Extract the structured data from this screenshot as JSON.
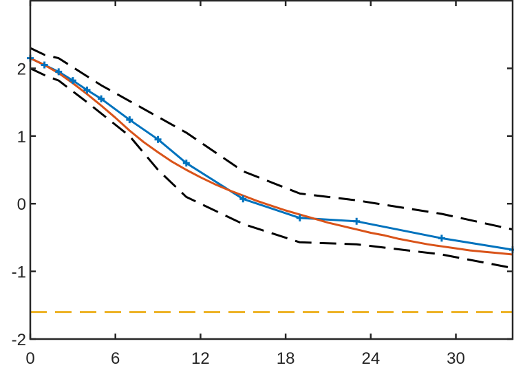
{
  "chart_data": {
    "type": "line",
    "title": "",
    "xlabel": "",
    "ylabel": "",
    "xlim": [
      0,
      34
    ],
    "ylim": [
      -2,
      3
    ],
    "x_ticks": [
      0,
      6,
      12,
      18,
      24,
      30
    ],
    "y_ticks": [
      -2,
      -1,
      0,
      1,
      2
    ],
    "x_tick_labels": [
      "0",
      "6",
      "12",
      "18",
      "24",
      "30"
    ],
    "y_tick_labels": [
      "-2",
      "-1",
      "0",
      "1",
      "2"
    ],
    "grid": false,
    "box": true,
    "series": [
      {
        "role": "observed",
        "color": "#0072BD",
        "marker": "+",
        "style": "solid",
        "x": [
          0,
          1,
          2,
          3,
          4,
          5,
          7,
          9,
          11,
          15,
          19,
          23,
          29,
          34
        ],
        "y": [
          2.15,
          2.05,
          1.95,
          1.82,
          1.68,
          1.55,
          1.24,
          0.95,
          0.6,
          0.07,
          -0.21,
          -0.26,
          -0.51,
          -0.68
        ]
      },
      {
        "role": "fitted",
        "color": "#D95319",
        "marker": "none",
        "style": "solid",
        "x": [
          0,
          1,
          2,
          3,
          4,
          5,
          6,
          7,
          8,
          9,
          10,
          11,
          12,
          13,
          14,
          15,
          16,
          17,
          18,
          19,
          20,
          21,
          22,
          23,
          24,
          25,
          26,
          27,
          28,
          29,
          30,
          31,
          32,
          33,
          34
        ],
        "y": [
          2.15,
          2.05,
          1.93,
          1.78,
          1.62,
          1.45,
          1.27,
          1.08,
          0.91,
          0.76,
          0.62,
          0.5,
          0.39,
          0.29,
          0.2,
          0.12,
          0.04,
          -0.03,
          -0.1,
          -0.16,
          -0.22,
          -0.28,
          -0.33,
          -0.38,
          -0.43,
          -0.47,
          -0.52,
          -0.56,
          -0.6,
          -0.63,
          -0.66,
          -0.69,
          -0.71,
          -0.73,
          -0.75
        ]
      },
      {
        "role": "upper-bound",
        "color": "#000000",
        "marker": "none",
        "style": "dashed",
        "x": [
          0,
          1,
          2,
          5,
          11,
          15,
          19,
          23,
          29,
          34
        ],
        "y": [
          2.3,
          2.2,
          2.15,
          1.75,
          1.05,
          0.48,
          0.15,
          0.05,
          -0.15,
          -0.38
        ]
      },
      {
        "role": "lower-bound",
        "color": "#000000",
        "marker": "none",
        "style": "dashed",
        "x": [
          0,
          1,
          2,
          4,
          7,
          9,
          11,
          15,
          19,
          23,
          29,
          34
        ],
        "y": [
          2.0,
          1.9,
          1.82,
          1.5,
          1.0,
          0.5,
          0.1,
          -0.3,
          -0.57,
          -0.6,
          -0.75,
          -0.95
        ]
      },
      {
        "role": "reference-level",
        "color": "#EDB120",
        "marker": "none",
        "style": "dashed",
        "x": [
          0,
          34
        ],
        "y": [
          -1.6,
          -1.6
        ]
      }
    ]
  }
}
